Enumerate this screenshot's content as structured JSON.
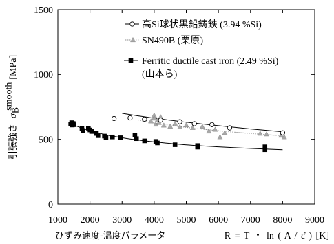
{
  "chart_data": {
    "type": "scatter",
    "xlabel": {
      "text": "ひずみ速度-温度パラメータ",
      "formula": "R = T ・ ln ( A / ε̇ ) [K]"
    },
    "ylabel": {
      "text": "引張強さ",
      "symbol": "σ",
      "subscript": "B",
      "superscript": "smooth",
      "unit": "[MPa]"
    },
    "xlim": [
      1000,
      9000
    ],
    "ylim": [
      0,
      1500
    ],
    "xticks": [
      1000,
      2000,
      3000,
      4000,
      5000,
      6000,
      7000,
      8000,
      9000
    ],
    "yticks": [
      0,
      500,
      1000,
      1500
    ],
    "grid": false,
    "legend_position": "top-right",
    "series": [
      {
        "name": "高Si球状黒鉛鋳鉄 (3.94 %Si)",
        "marker": "open-circle",
        "color": "#000000",
        "line_style": "solid",
        "line_color": "#000000",
        "x": [
          2750,
          3250,
          3700,
          4200,
          4800,
          5250,
          5800,
          6350,
          8000
        ],
        "y": [
          660,
          665,
          655,
          648,
          635,
          620,
          613,
          588,
          550
        ],
        "trend_line": {
          "x": [
            3000,
            4000,
            5000,
            6000,
            7000,
            8000
          ],
          "y": [
            700,
            663,
            632,
            605,
            580,
            558
          ]
        }
      },
      {
        "name": "SN490B (栗原)",
        "marker": "triangle",
        "color": "#a8a8a8",
        "line_style": "dotted",
        "line_color": "#8c8c8c",
        "x": [
          3900,
          4000,
          4000,
          4050,
          4100,
          4150,
          4200,
          4300,
          4500,
          4650,
          4800,
          5000,
          5200,
          5500,
          5700,
          5900,
          6050,
          6200,
          7300,
          7500,
          7950,
          8050
        ],
        "y": [
          640,
          685,
          662,
          615,
          648,
          628,
          672,
          608,
          600,
          622,
          595,
          610,
          590,
          598,
          562,
          576,
          518,
          550,
          545,
          540,
          530,
          518
        ],
        "trend_line": {
          "x": [
            3500,
            4000,
            5000,
            6000,
            7000,
            8000
          ],
          "y": [
            650,
            625,
            592,
            566,
            545,
            527
          ]
        }
      },
      {
        "name": "Ferritic ductile cast iron (2.49 %Si)",
        "name_line2": "(山本ら)",
        "marker": "filled-square",
        "color": "#000000",
        "line_style": "solid",
        "line_color": "#000000",
        "x": [
          1400,
          1430,
          1450,
          1480,
          1500,
          1750,
          1780,
          1950,
          2000,
          2050,
          2200,
          2250,
          2450,
          2500,
          2700,
          2950,
          3400,
          3450,
          3700,
          4050,
          4100,
          4650,
          5350,
          5350,
          7450,
          7450
        ],
        "y": [
          618,
          628,
          610,
          622,
          612,
          582,
          568,
          586,
          572,
          560,
          545,
          528,
          525,
          512,
          518,
          512,
          532,
          505,
          488,
          484,
          472,
          458,
          452,
          440,
          442,
          420
        ],
        "trend_line": {
          "x": [
            1350,
            1500,
            1750,
            2000,
            2500,
            3000,
            3500,
            4000,
            5000,
            6000,
            7000,
            8000
          ],
          "y": [
            628,
            610,
            586,
            566,
            535,
            512,
            494,
            480,
            457,
            442,
            430,
            420
          ]
        }
      }
    ]
  }
}
